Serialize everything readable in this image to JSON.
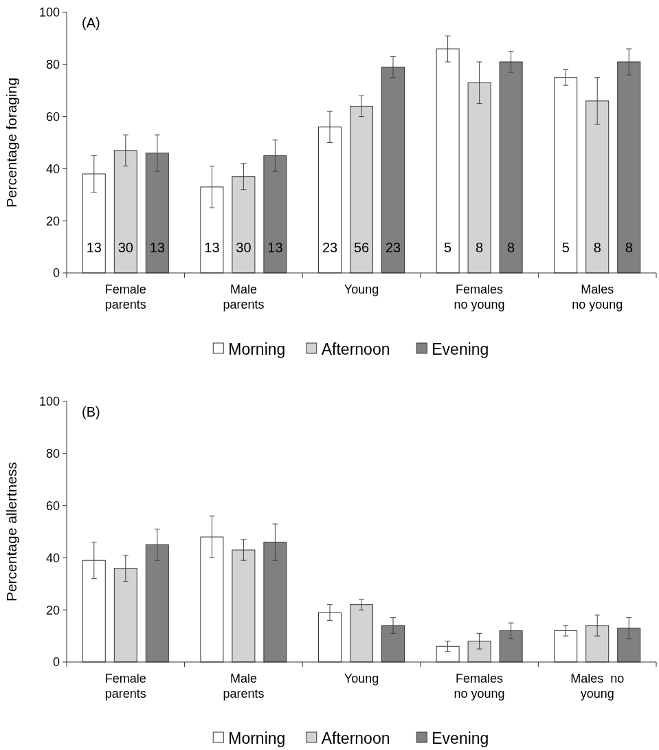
{
  "chart_data": [
    {
      "type": "bar",
      "title": "(A)",
      "ylabel": "Percentage foraging",
      "categories": [
        "Female\nparents",
        "Male\nparents",
        "Young",
        "Females\nno young",
        "Males\nno young"
      ],
      "ylim": [
        0,
        100
      ],
      "yticks": [
        0,
        20,
        40,
        60,
        80,
        100
      ],
      "legend": "bottom",
      "annotations": [
        "13",
        "30",
        "13",
        "13",
        "30",
        "13",
        "23",
        "56",
        "23",
        "5",
        "8",
        "8",
        "5",
        "8",
        "8"
      ],
      "series": [
        {
          "name": "Morning",
          "color": "#ffffff",
          "values": [
            38,
            33,
            56,
            86,
            75
          ],
          "errors": [
            [
              31,
              45
            ],
            [
              25,
              41
            ],
            [
              50,
              62
            ],
            [
              81,
              91
            ],
            [
              72,
              78
            ]
          ]
        },
        {
          "name": "Afternoon",
          "color": "#d3d3d3",
          "values": [
            47,
            37,
            64,
            73,
            66
          ],
          "errors": [
            [
              41,
              53
            ],
            [
              32,
              42
            ],
            [
              60,
              68
            ],
            [
              65,
              81
            ],
            [
              57,
              75
            ]
          ]
        },
        {
          "name": "Evening",
          "color": "#808080",
          "values": [
            46,
            45,
            79,
            81,
            81
          ],
          "errors": [
            [
              39,
              53
            ],
            [
              39,
              51
            ],
            [
              75,
              83
            ],
            [
              77,
              85
            ],
            [
              76,
              86
            ]
          ]
        }
      ]
    },
    {
      "type": "bar",
      "title": "(B)",
      "ylabel": "Percentage allertness",
      "categories": [
        "Female\nparents",
        "Male\nparents",
        "Young",
        "Females\nno young",
        "Males  no\nyoung"
      ],
      "ylim": [
        0,
        100
      ],
      "yticks": [
        0,
        20,
        40,
        60,
        80,
        100
      ],
      "legend": "bottom",
      "series": [
        {
          "name": "Morning",
          "color": "#ffffff",
          "values": [
            39,
            48,
            19,
            6,
            12
          ],
          "errors": [
            [
              32,
              46
            ],
            [
              40,
              56
            ],
            [
              16,
              22
            ],
            [
              4,
              8
            ],
            [
              10,
              14
            ]
          ]
        },
        {
          "name": "Afternoon",
          "color": "#d3d3d3",
          "values": [
            36,
            43,
            22,
            8,
            14
          ],
          "errors": [
            [
              31,
              41
            ],
            [
              39,
              47
            ],
            [
              20,
              24
            ],
            [
              5,
              11
            ],
            [
              10,
              18
            ]
          ]
        },
        {
          "name": "Evening",
          "color": "#808080",
          "values": [
            45,
            46,
            14,
            12,
            13
          ],
          "errors": [
            [
              39,
              51
            ],
            [
              39,
              53
            ],
            [
              11,
              17
            ],
            [
              9,
              15
            ],
            [
              9,
              17
            ]
          ]
        }
      ]
    }
  ]
}
